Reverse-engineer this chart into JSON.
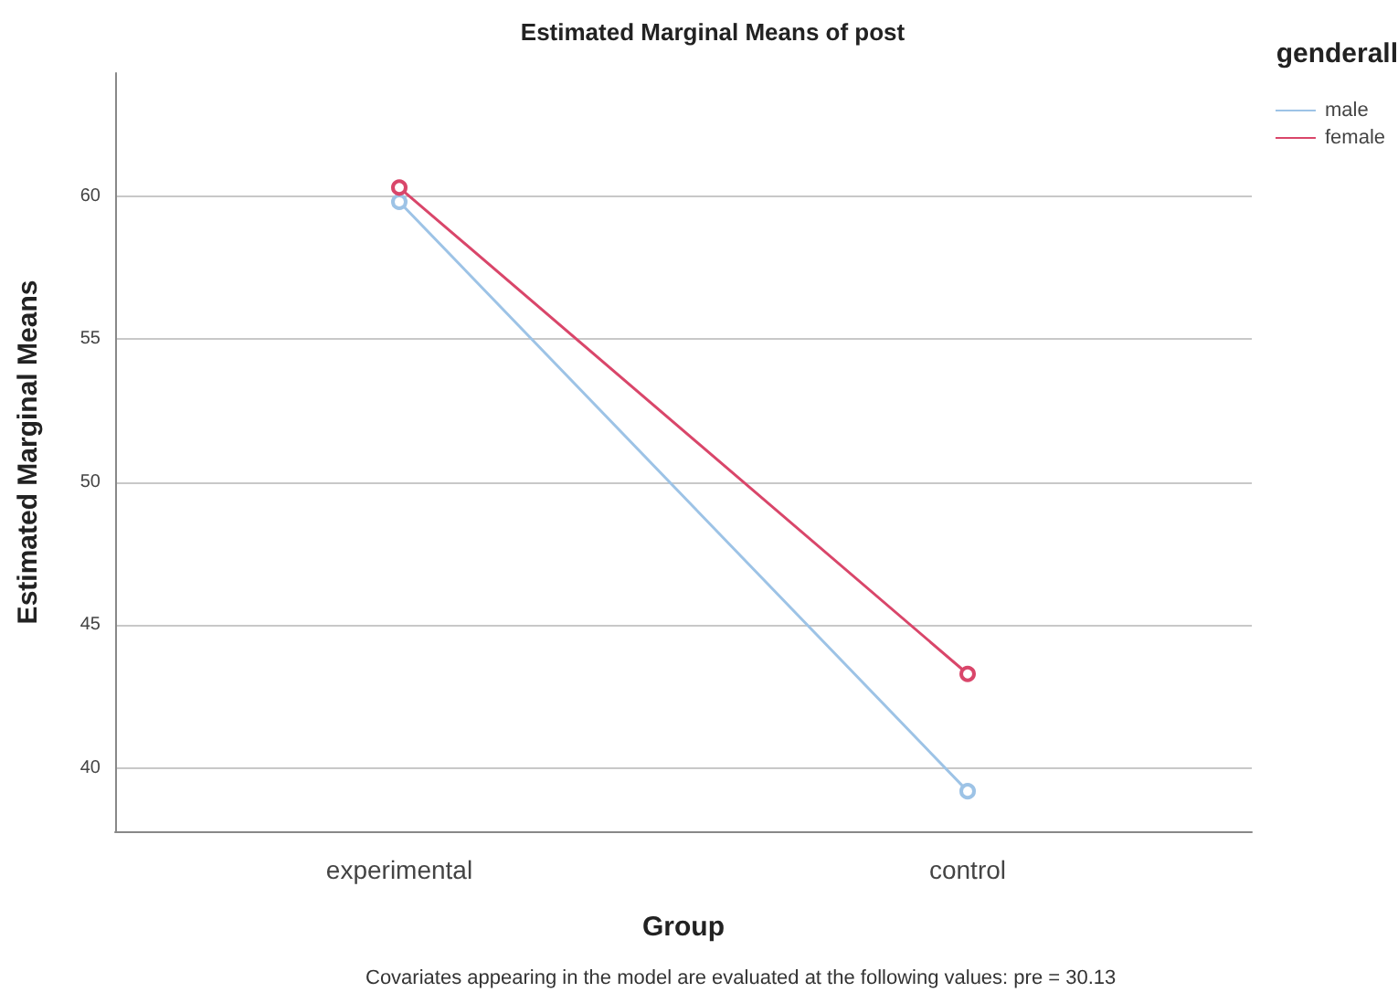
{
  "chart_data": {
    "type": "line",
    "title": "Estimated Marginal Means of post",
    "xlabel": "Group",
    "ylabel": "Estimated Marginal Means",
    "legend_title": "genderall",
    "categories": [
      "experimental",
      "control"
    ],
    "series": [
      {
        "name": "male",
        "color": "#9dc3e6",
        "values": [
          59.8,
          39.2
        ]
      },
      {
        "name": "female",
        "color": "#d9466a",
        "values": [
          60.3,
          43.3
        ]
      }
    ],
    "ylim": [
      37.8,
      64.3
    ],
    "yticks": [
      40,
      45,
      50,
      55,
      60
    ],
    "grid": "y",
    "legend": "top right",
    "marker": "circle",
    "line_style": "solid",
    "annotations": [
      "Covariates appearing in the model are evaluated at the following values: pre = 30.13"
    ]
  }
}
